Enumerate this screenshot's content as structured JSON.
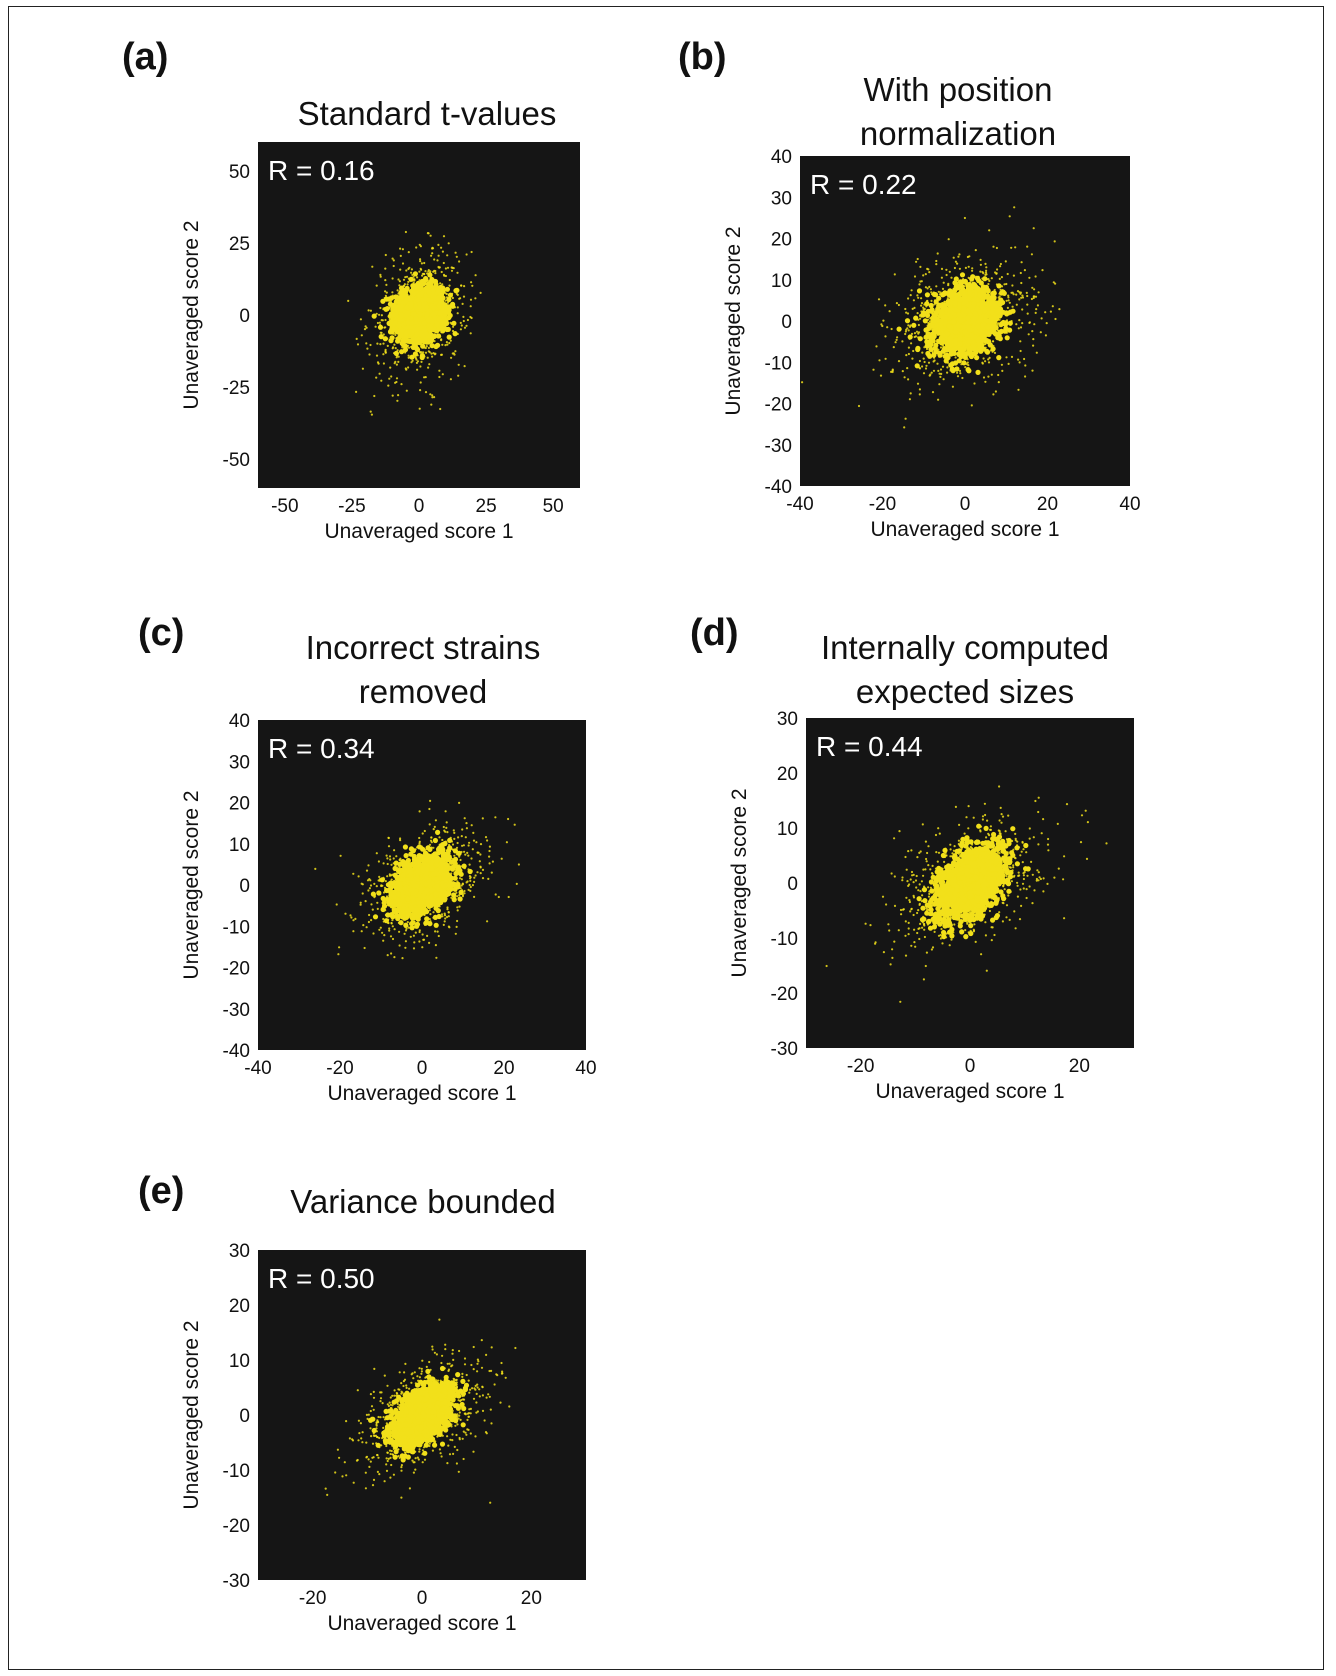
{
  "chart_data": [
    {
      "type": "scatter",
      "panel_label": "(a)",
      "title_lines": [
        "Standard t-values"
      ],
      "xlabel": "Unaveraged score 1",
      "ylabel": "Unaveraged score 2",
      "xlim": [
        -60,
        60
      ],
      "ylim": [
        -60,
        60
      ],
      "xticks": [
        -50,
        -25,
        0,
        25,
        50
      ],
      "yticks": [
        -50,
        -25,
        0,
        25,
        50
      ],
      "annotation": "R = 0.16",
      "correlation": 0.16,
      "core_spread": [
        4.5,
        4.5
      ],
      "tail_spread": [
        9,
        11
      ],
      "background_color": "#151515",
      "point_color": "#f2e01a"
    },
    {
      "type": "scatter",
      "panel_label": "(b)",
      "title_lines": [
        "With position",
        "normalization"
      ],
      "xlabel": "Unaveraged score 1",
      "ylabel": "Unaveraged score 2",
      "xlim": [
        -40,
        40
      ],
      "ylim": [
        -40,
        40
      ],
      "xticks": [
        -40,
        -20,
        0,
        20,
        40
      ],
      "yticks": [
        -40,
        -30,
        -20,
        -10,
        0,
        10,
        20,
        30,
        40
      ],
      "annotation": "R = 0.22",
      "correlation": 0.22,
      "core_spread": [
        4,
        4
      ],
      "tail_spread": [
        9,
        8
      ],
      "background_color": "#151515",
      "point_color": "#f2e01a"
    },
    {
      "type": "scatter",
      "panel_label": "(c)",
      "title_lines": [
        "Incorrect strains",
        "removed"
      ],
      "xlabel": "Unaveraged score 1",
      "ylabel": "Unaveraged score 2",
      "xlim": [
        -40,
        40
      ],
      "ylim": [
        -40,
        40
      ],
      "xticks": [
        -40,
        -20,
        0,
        20,
        40
      ],
      "yticks": [
        -40,
        -30,
        -20,
        -10,
        0,
        10,
        20,
        30,
        40
      ],
      "annotation": "R = 0.34",
      "correlation": 0.34,
      "core_spread": [
        3.5,
        3.5
      ],
      "tail_spread": [
        8,
        7
      ],
      "background_color": "#151515",
      "point_color": "#f2e01a"
    },
    {
      "type": "scatter",
      "panel_label": "(d)",
      "title_lines": [
        "Internally computed",
        "expected sizes"
      ],
      "xlabel": "Unaveraged score 1",
      "ylabel": "Unaveraged score 2",
      "xlim": [
        -30,
        30
      ],
      "ylim": [
        -30,
        30
      ],
      "xticks": [
        -20,
        0,
        20
      ],
      "yticks": [
        -30,
        -20,
        -10,
        0,
        10,
        20,
        30
      ],
      "annotation": "R = 0.44",
      "correlation": 0.44,
      "core_spread": [
        3.2,
        3.2
      ],
      "tail_spread": [
        7,
        6
      ],
      "background_color": "#151515",
      "point_color": "#f2e01a"
    },
    {
      "type": "scatter",
      "panel_label": "(e)",
      "title_lines": [
        "Variance bounded"
      ],
      "xlabel": "Unaveraged score 1",
      "ylabel": "Unaveraged score 2",
      "xlim": [
        -30,
        30
      ],
      "ylim": [
        -30,
        30
      ],
      "xticks": [
        -20,
        0,
        20
      ],
      "yticks": [
        -30,
        -20,
        -10,
        0,
        10,
        20,
        30
      ],
      "annotation": "R = 0.50",
      "correlation": 0.5,
      "core_spread": [
        2.6,
        2.6
      ],
      "tail_spread": [
        6.5,
        5.5
      ],
      "background_color": "#151515",
      "point_color": "#f2e01a"
    }
  ]
}
